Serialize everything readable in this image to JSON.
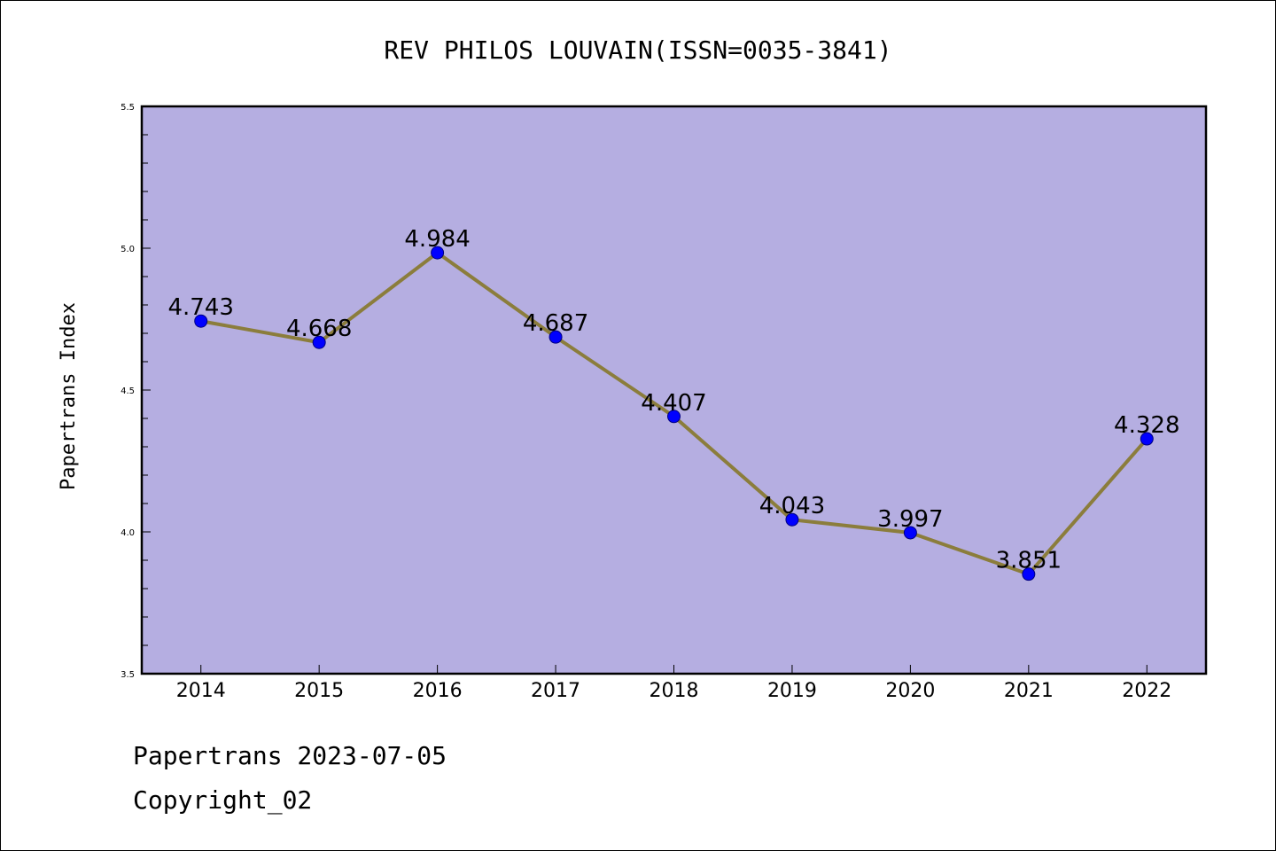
{
  "chart_data": {
    "type": "line",
    "title": "REV PHILOS LOUVAIN(ISSN=0035-3841)",
    "ylabel": "Papertrans Index",
    "xlabel": "",
    "categories": [
      "2014",
      "2015",
      "2016",
      "2017",
      "2018",
      "2019",
      "2020",
      "2021",
      "2022"
    ],
    "values": [
      4.743,
      4.668,
      4.984,
      4.687,
      4.407,
      4.043,
      3.997,
      3.851,
      4.328
    ],
    "data_labels": [
      "4.743",
      "4.668",
      "4.984",
      "4.687",
      "4.407",
      "4.043",
      "3.997",
      "3.851",
      "4.328"
    ],
    "ylim": [
      3.5,
      5.5
    ],
    "y_ticks": [
      "3.5",
      "4.0",
      "4.5",
      "5.0",
      "5.5"
    ],
    "grid": false,
    "colors": {
      "plot_background": "#b5aee1",
      "line": "#8b7d3c",
      "marker": "#0000ff",
      "marker_edge": "#000080"
    }
  },
  "footer": {
    "line1": "Papertrans 2023-07-05",
    "line2": "Copyright_02"
  }
}
